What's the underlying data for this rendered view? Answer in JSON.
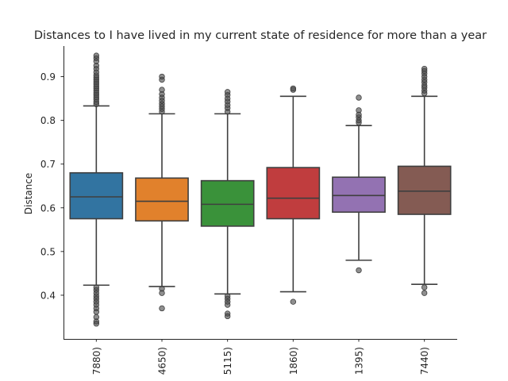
{
  "chart_data": {
    "type": "box",
    "title": "Distances to I have lived in my current state of residence for more than a year",
    "xlabel": "",
    "ylabel": "Distance",
    "ylim": [
      0.3,
      0.97
    ],
    "yticks": [
      0.4,
      0.5,
      0.6,
      0.7,
      0.8,
      0.9
    ],
    "categories": [
      "7880)",
      "4650)",
      "5115)",
      "1860)",
      "1395)",
      "7440)"
    ],
    "colors": [
      "#3274a1",
      "#e1812c",
      "#3a923a",
      "#c03d3e",
      "#9372b2",
      "#845b53"
    ],
    "boxes": [
      {
        "q1": 0.575,
        "median": 0.625,
        "q3": 0.68,
        "whisker_low": 0.423,
        "whisker_high": 0.833,
        "fliers": [
          0.418,
          0.412,
          0.405,
          0.398,
          0.392,
          0.385,
          0.378,
          0.37,
          0.362,
          0.35,
          0.34,
          0.335,
          0.837,
          0.842,
          0.848,
          0.853,
          0.858,
          0.863,
          0.868,
          0.873,
          0.878,
          0.883,
          0.888,
          0.893,
          0.898,
          0.903,
          0.91,
          0.918,
          0.925,
          0.935,
          0.942,
          0.948
        ]
      },
      {
        "q1": 0.57,
        "median": 0.615,
        "q3": 0.668,
        "whisker_low": 0.42,
        "whisker_high": 0.815,
        "fliers": [
          0.415,
          0.405,
          0.37,
          0.82,
          0.826,
          0.832,
          0.838,
          0.845,
          0.852,
          0.86,
          0.87,
          0.893,
          0.9
        ]
      },
      {
        "q1": 0.558,
        "median": 0.608,
        "q3": 0.662,
        "whisker_low": 0.403,
        "whisker_high": 0.815,
        "fliers": [
          0.398,
          0.392,
          0.385,
          0.378,
          0.358,
          0.352,
          0.82,
          0.828,
          0.835,
          0.843,
          0.85,
          0.858,
          0.865
        ]
      },
      {
        "q1": 0.575,
        "median": 0.622,
        "q3": 0.692,
        "whisker_low": 0.408,
        "whisker_high": 0.855,
        "fliers": [
          0.385,
          0.87,
          0.873
        ]
      },
      {
        "q1": 0.59,
        "median": 0.628,
        "q3": 0.67,
        "whisker_low": 0.48,
        "whisker_high": 0.788,
        "fliers": [
          0.457,
          0.795,
          0.8,
          0.807,
          0.813,
          0.823,
          0.852
        ]
      },
      {
        "q1": 0.585,
        "median": 0.638,
        "q3": 0.695,
        "whisker_low": 0.425,
        "whisker_high": 0.855,
        "fliers": [
          0.418,
          0.405,
          0.862,
          0.868,
          0.875,
          0.88,
          0.887,
          0.893,
          0.9,
          0.907,
          0.913,
          0.918
        ]
      }
    ]
  }
}
